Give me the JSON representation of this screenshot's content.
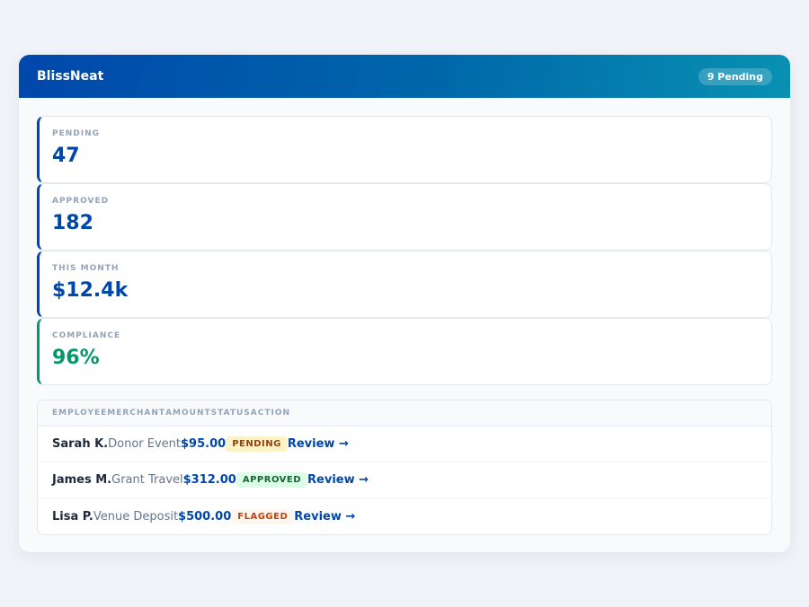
{
  "header": {
    "title": "BlissNeat",
    "pending_badge": "9 Pending"
  },
  "stats": [
    {
      "label": "PENDING",
      "value": "47"
    },
    {
      "label": "APPROVED",
      "value": "182"
    },
    {
      "label": "THIS MONTH",
      "value": "$12.4k"
    },
    {
      "label": "COMPLIANCE",
      "value": "96%"
    }
  ],
  "table": {
    "columns": [
      "EMPLOYEE",
      "MERCHANT",
      "AMOUNT",
      "STATUS",
      "ACTION"
    ],
    "rows": [
      {
        "employee": "Sarah K.",
        "merchant": "Donor Event",
        "amount": "$95.00",
        "status": "PENDING",
        "action": "Review →"
      },
      {
        "employee": "James M.",
        "merchant": "Grant Travel",
        "amount": "$312.00",
        "status": "APPROVED",
        "action": "Review →"
      },
      {
        "employee": "Lisa P.",
        "merchant": "Venue Deposit",
        "amount": "$500.00",
        "status": "FLAGGED",
        "action": "Review →"
      }
    ]
  },
  "colors": {
    "primary": "#0047ab",
    "accent": "#0891b2",
    "success": "#059669"
  }
}
